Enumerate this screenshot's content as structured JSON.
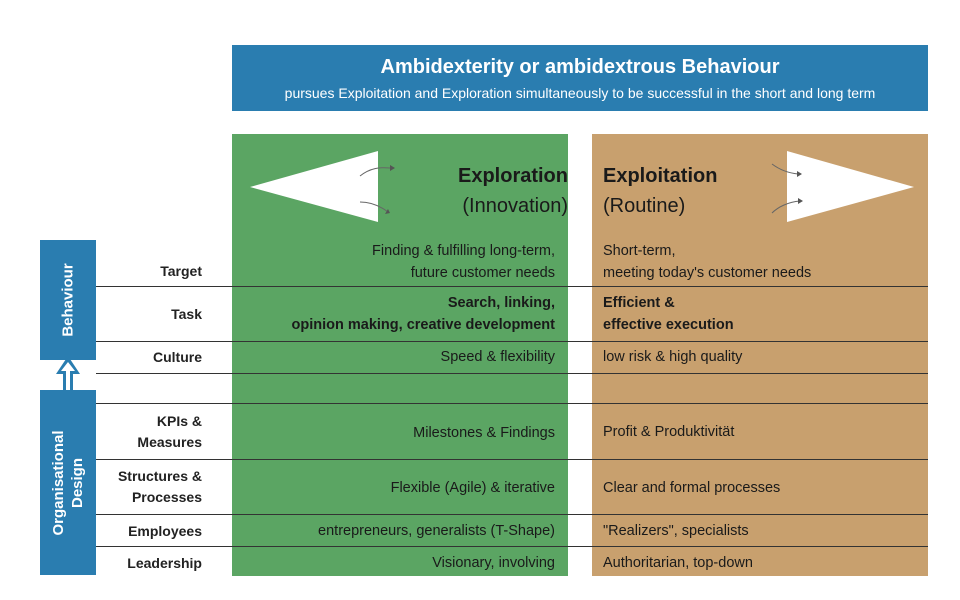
{
  "header": {
    "title": "Ambidexterity or ambidextrous Behaviour",
    "subtitle": "pursues Exploitation and Exploration simultaneously to be successful in the short and long term"
  },
  "columns": {
    "exploration": {
      "title": "Exploration",
      "subtitle": "(Innovation)"
    },
    "exploitation": {
      "title": "Exploitation",
      "subtitle": "(Routine)"
    }
  },
  "side": {
    "behaviour": "Behaviour",
    "org_line1": "Organisational",
    "org_line2": "Design"
  },
  "rows": [
    {
      "label1": "Target",
      "label2": "",
      "explore1": "Finding & fulfilling long-term,",
      "explore2": "future customer needs",
      "exploit1": "Short-term,",
      "exploit2": "meeting today's customer needs"
    },
    {
      "label1": "Task",
      "label2": "",
      "explore1": "Search, linking,",
      "explore2": "opinion making, creative development",
      "exploit1": "Efficient &",
      "exploit2": "effective execution"
    },
    {
      "label1": "Culture",
      "label2": "",
      "explore1": "Speed & flexibility",
      "explore2": "",
      "exploit1": "low risk & high quality",
      "exploit2": ""
    },
    {
      "label1": "KPIs &",
      "label2": "Measures",
      "explore1": "Milestones & Findings",
      "explore2": "",
      "exploit1": "Profit & Produktivität",
      "exploit2": ""
    },
    {
      "label1": "Structures &",
      "label2": "Processes",
      "explore1": "Flexible (Agile) & iterative",
      "explore2": "",
      "exploit1": "Clear and formal processes",
      "exploit2": ""
    },
    {
      "label1": "Employees",
      "label2": "",
      "explore1": "entrepreneurs, generalists (T-Shape)",
      "explore2": "",
      "exploit1": "\"Realizers\", specialists",
      "exploit2": ""
    },
    {
      "label1": "Leadership",
      "label2": "",
      "explore1": "Visionary, involving",
      "explore2": "",
      "exploit1": "Authoritarian, top-down",
      "exploit2": ""
    }
  ],
  "colors": {
    "blue": "#2a7db0",
    "green": "#5ba563",
    "tan": "#c8a06e"
  }
}
